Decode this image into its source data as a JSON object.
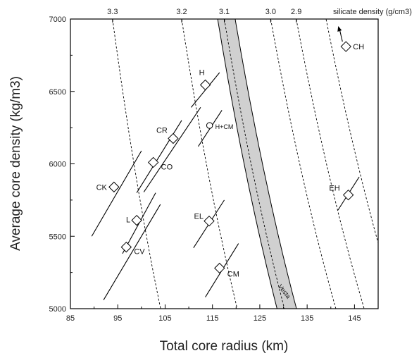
{
  "chart_data": {
    "type": "scatter",
    "xlabel": "Total core radius (km)",
    "ylabel": "Average core density (kg/m3)",
    "xlim": [
      85,
      150
    ],
    "ylim": [
      5000,
      7000
    ],
    "x_ticks": [
      85,
      95,
      105,
      115,
      125,
      135,
      145
    ],
    "y_ticks": [
      5000,
      5500,
      6000,
      6500,
      7000
    ],
    "top_axis": {
      "label": "silicate density (g/cm3)",
      "ticks": [
        {
          "label": "3.3",
          "x": 93.9
        },
        {
          "label": "3.2",
          "x": 108.5
        },
        {
          "label": "3.1",
          "x": 117.5
        },
        {
          "label": "3.0",
          "x": 127.3
        },
        {
          "label": "2.9",
          "x": 132.7
        }
      ]
    },
    "points": [
      {
        "name": "CH",
        "x": 143.2,
        "y": 6810,
        "marker": "diamond",
        "arrow": true
      },
      {
        "name": "H",
        "x": 113.5,
        "y": 6545,
        "marker": "diamond"
      },
      {
        "name": "H+CM",
        "x": 114.4,
        "y": 6265,
        "marker": "circle"
      },
      {
        "name": "CR",
        "x": 106.7,
        "y": 6175,
        "marker": "diamond"
      },
      {
        "name": "CO",
        "x": 102.5,
        "y": 6010,
        "marker": "diamond"
      },
      {
        "name": "CK",
        "x": 94.2,
        "y": 5840,
        "marker": "diamond"
      },
      {
        "name": "EH",
        "x": 143.7,
        "y": 5785,
        "marker": "diamond"
      },
      {
        "name": "L",
        "x": 99.0,
        "y": 5610,
        "marker": "diamond"
      },
      {
        "name": "EL",
        "x": 114.3,
        "y": 5605,
        "marker": "diamond"
      },
      {
        "name": "CV",
        "x": 96.8,
        "y": 5425,
        "marker": "diamond"
      },
      {
        "name": "CM",
        "x": 116.5,
        "y": 5280,
        "marker": "diamond"
      }
    ],
    "trend_lines": [
      {
        "point": "H",
        "from": [
          110.5,
          6390
        ],
        "to": [
          116.5,
          6630
        ]
      },
      {
        "point": "H+CM",
        "from": [
          112.0,
          6120
        ],
        "to": [
          117.0,
          6370
        ]
      },
      {
        "point": "CR",
        "from": [
          100.5,
          5805
        ],
        "to": [
          112.5,
          6390
        ]
      },
      {
        "point": "CO",
        "from": [
          99.0,
          5800
        ],
        "to": [
          108.5,
          6300
        ]
      },
      {
        "point": "CK",
        "from": [
          89.5,
          5500
        ],
        "to": [
          100.0,
          6090
        ]
      },
      {
        "point": "EH",
        "from": [
          141.5,
          5680
        ],
        "to": [
          146.0,
          5910
        ]
      },
      {
        "point": "L",
        "from": [
          96.0,
          5380
        ],
        "to": [
          103.0,
          5800
        ]
      },
      {
        "point": "EL",
        "from": [
          111.0,
          5420
        ],
        "to": [
          117.5,
          5750
        ]
      },
      {
        "point": "CV",
        "from": [
          92.0,
          5060
        ],
        "to": [
          104.0,
          5720
        ]
      },
      {
        "point": "CM",
        "from": [
          113.5,
          5080
        ],
        "to": [
          120.5,
          5450
        ]
      }
    ],
    "dashed_curves": [
      {
        "label": "3.3",
        "x_at_top": 93.9
      },
      {
        "label": "3.2",
        "x_at_top": 108.5
      },
      {
        "label": "3.1",
        "x_at_top": 117.5
      },
      {
        "label": "3.0",
        "x_at_top": 127.3
      },
      {
        "label": "2.9",
        "x_at_top": 132.7
      },
      {
        "label": "",
        "x_at_top": 139.0
      }
    ],
    "vesta_band": {
      "label": "Vesta",
      "left_x_at_top": 116.1,
      "right_x_at_top": 119.8,
      "fill": "#d0d0d0"
    },
    "grid": false
  }
}
